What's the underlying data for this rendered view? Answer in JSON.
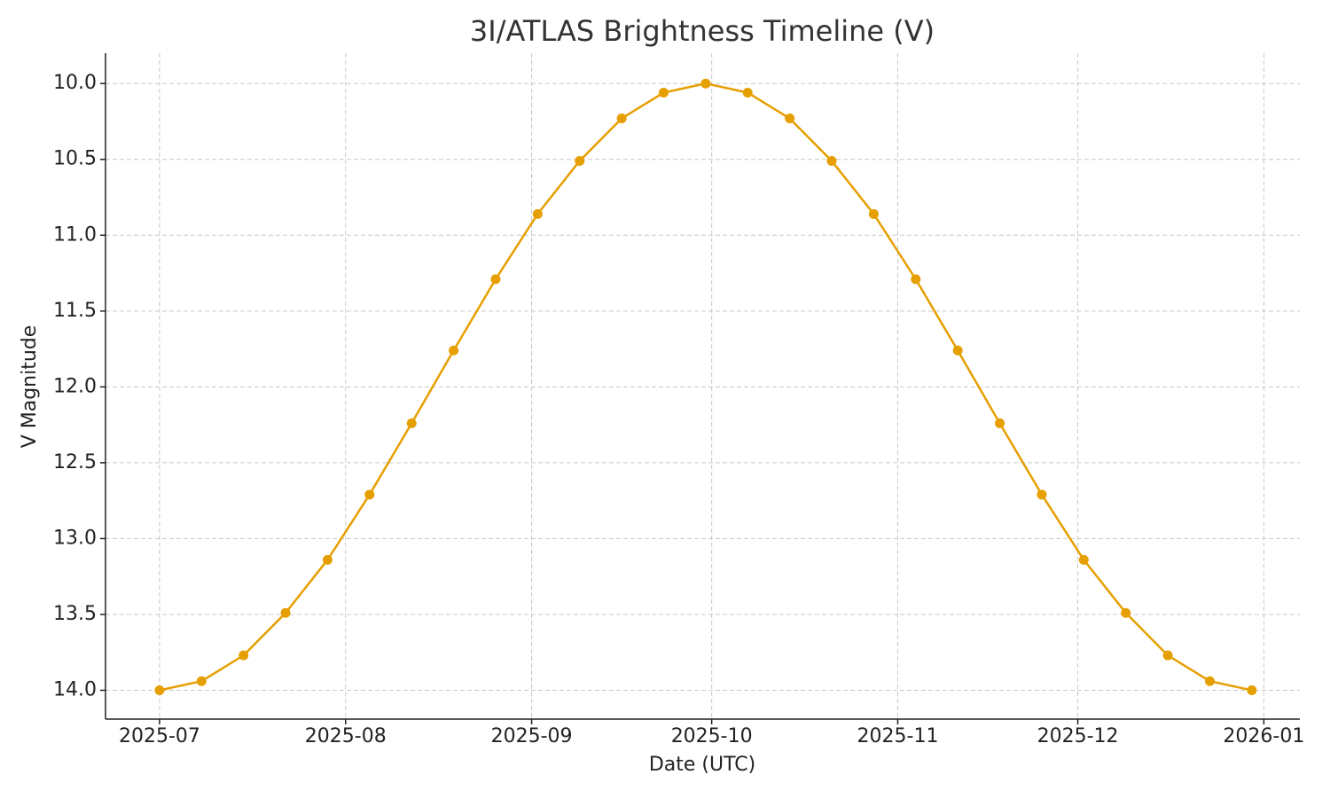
{
  "chart_data": {
    "type": "line",
    "title": "3I/ATLAS Brightness Timeline (V)",
    "x_label": "Date (UTC)",
    "y_label": "V Magnitude",
    "x": [
      "2025-07-01",
      "2025-07-08",
      "2025-07-15",
      "2025-07-22",
      "2025-07-29",
      "2025-08-05",
      "2025-08-12",
      "2025-08-19",
      "2025-08-26",
      "2025-09-02",
      "2025-09-09",
      "2025-09-16",
      "2025-09-23",
      "2025-09-30",
      "2025-10-07",
      "2025-10-14",
      "2025-10-21",
      "2025-10-28",
      "2025-11-04",
      "2025-11-11",
      "2025-11-18",
      "2025-11-25",
      "2025-12-02",
      "2025-12-09",
      "2025-12-16",
      "2025-12-23",
      "2025-12-30"
    ],
    "series": [
      {
        "name": "V",
        "color": "#e69f00",
        "values": [
          14.0,
          13.94,
          13.77,
          13.49,
          13.14,
          12.71,
          12.24,
          11.76,
          11.29,
          10.86,
          10.51,
          10.23,
          10.06,
          10.0,
          10.06,
          10.23,
          10.51,
          10.86,
          11.29,
          11.76,
          12.24,
          12.71,
          13.14,
          13.49,
          13.77,
          13.94,
          14.0
        ]
      }
    ],
    "xlim": [
      "2025-06-22",
      "2026-01-07"
    ],
    "xticks": [
      {
        "value": "2025-07-01",
        "label": "2025-07"
      },
      {
        "value": "2025-08-01",
        "label": "2025-08"
      },
      {
        "value": "2025-09-01",
        "label": "2025-09"
      },
      {
        "value": "2025-10-01",
        "label": "2025-10"
      },
      {
        "value": "2025-11-01",
        "label": "2025-11"
      },
      {
        "value": "2025-12-01",
        "label": "2025-12"
      },
      {
        "value": "2026-01-01",
        "label": "2026-01"
      }
    ],
    "ylim": [
      9.8,
      14.19
    ],
    "y_inverted": true,
    "yticks": [
      {
        "value": 10,
        "label": "10.0"
      },
      {
        "value": 10.5,
        "label": "10.5"
      },
      {
        "value": 11,
        "label": "11.0"
      },
      {
        "value": 11.5,
        "label": "11.5"
      },
      {
        "value": 12,
        "label": "12.0"
      },
      {
        "value": 12.5,
        "label": "12.5"
      },
      {
        "value": 13,
        "label": "13.0"
      },
      {
        "value": 13.5,
        "label": "13.5"
      },
      {
        "value": 14,
        "label": "14.0"
      }
    ],
    "grid": true,
    "markers": true
  }
}
